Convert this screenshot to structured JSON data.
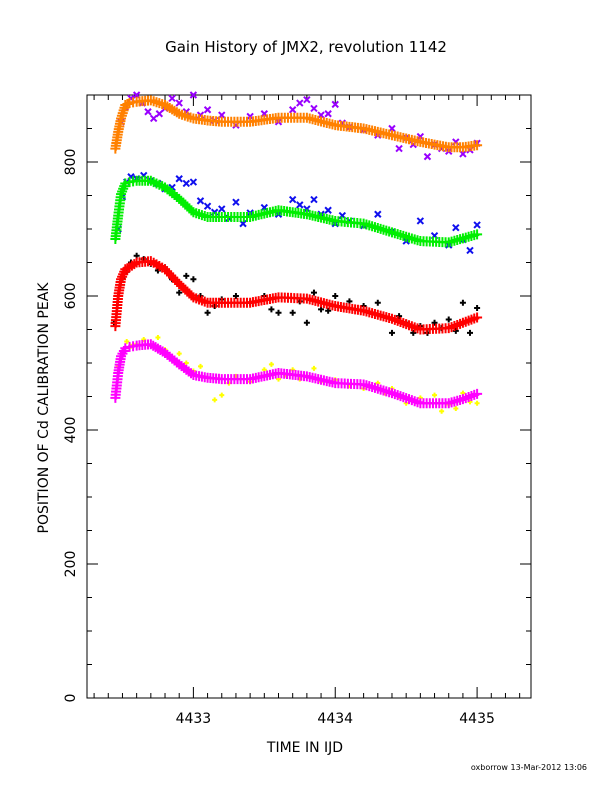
{
  "chart_data": {
    "type": "scatter",
    "title": "Gain History of JMX2, revolution 1142",
    "xlabel": "TIME IN IJD",
    "ylabel": "POSITION OF Cd CALIBRATION PEAK",
    "xlim": [
      4432.25,
      4435.38
    ],
    "ylim": [
      0,
      900
    ],
    "x_ticks": [
      4433,
      4434,
      4435
    ],
    "x_tick_labels": [
      "4433",
      "4434",
      "4435"
    ],
    "y_ticks": [
      0,
      200,
      400,
      600,
      800
    ],
    "y_tick_labels": [
      "0",
      "200",
      "400",
      "600",
      "800"
    ],
    "grid": false,
    "legend": "none",
    "footer": "oxborrow 13-Mar-2012 13:06",
    "series": [
      {
        "role": "raw-scatter",
        "color": "#9900ff",
        "marker": "x",
        "size": 4,
        "x": [
          4432.49,
          4432.52,
          4432.56,
          4432.6,
          4432.64,
          4432.68,
          4432.72,
          4432.76,
          4432.8,
          4432.85,
          4432.9,
          4432.95,
          4433.0,
          4433.05,
          4433.1,
          4433.15,
          4433.2,
          4433.3,
          4433.4,
          4433.5,
          4433.6,
          4433.7,
          4433.75,
          4433.8,
          4433.85,
          4433.9,
          4433.95,
          4434.0,
          4434.05,
          4434.1,
          4434.2,
          4434.3,
          4434.4,
          4434.45,
          4434.5,
          4434.55,
          4434.6,
          4434.65,
          4434.7,
          4434.75,
          4434.8,
          4434.85,
          4434.9,
          4434.95,
          4435.0
        ],
        "y": [
          860,
          882,
          895,
          900,
          888,
          875,
          865,
          872,
          880,
          895,
          888,
          875,
          900,
          870,
          878,
          862,
          870,
          855,
          868,
          872,
          860,
          878,
          888,
          893,
          880,
          870,
          872,
          886,
          858,
          852,
          848,
          840,
          850,
          820,
          836,
          826,
          838,
          808,
          826,
          820,
          816,
          830,
          812,
          818,
          828
        ]
      },
      {
        "role": "raw-scatter",
        "color": "#1010ee",
        "marker": "x",
        "size": 4,
        "x": [
          4432.47,
          4432.5,
          4432.53,
          4432.56,
          4432.6,
          4432.65,
          4432.7,
          4432.75,
          4432.8,
          4432.85,
          4432.9,
          4432.95,
          4433.0,
          4433.05,
          4433.1,
          4433.15,
          4433.2,
          4433.25,
          4433.3,
          4433.35,
          4433.4,
          4433.5,
          4433.6,
          4433.7,
          4433.75,
          4433.8,
          4433.85,
          4433.9,
          4433.95,
          4434.0,
          4434.05,
          4434.1,
          4434.2,
          4434.3,
          4434.4,
          4434.5,
          4434.6,
          4434.7,
          4434.8,
          4434.85,
          4434.9,
          4434.95,
          4435.0
        ],
        "y": [
          700,
          748,
          770,
          778,
          775,
          780,
          772,
          768,
          760,
          762,
          775,
          768,
          770,
          742,
          734,
          725,
          730,
          716,
          740,
          708,
          724,
          732,
          722,
          744,
          736,
          730,
          744,
          722,
          728,
          708,
          720,
          712,
          705,
          722,
          696,
          682,
          712,
          690,
          676,
          702,
          684,
          668,
          706
        ]
      },
      {
        "role": "raw-scatter",
        "color": "#000000",
        "marker": "plus",
        "size": 4,
        "x": [
          4432.44,
          4432.47,
          4432.5,
          4432.53,
          4432.56,
          4432.6,
          4432.65,
          4432.7,
          4432.75,
          4432.8,
          4432.85,
          4432.9,
          4432.95,
          4433.0,
          4433.05,
          4433.1,
          4433.15,
          4433.2,
          4433.3,
          4433.4,
          4433.5,
          4433.55,
          4433.6,
          4433.7,
          4433.75,
          4433.8,
          4433.85,
          4433.9,
          4433.95,
          4434.0,
          4434.1,
          4434.2,
          4434.3,
          4434.4,
          4434.45,
          4434.5,
          4434.55,
          4434.6,
          4434.65,
          4434.7,
          4434.75,
          4434.8,
          4434.85,
          4434.9,
          4434.95,
          4435.0
        ],
        "y": [
          560,
          600,
          626,
          636,
          650,
          660,
          655,
          648,
          638,
          643,
          625,
          605,
          630,
          625,
          600,
          575,
          585,
          595,
          600,
          590,
          600,
          580,
          575,
          575,
          592,
          560,
          605,
          580,
          578,
          600,
          592,
          585,
          590,
          545,
          570,
          560,
          545,
          555,
          545,
          560,
          552,
          565,
          548,
          590,
          545,
          582
        ]
      },
      {
        "role": "raw-scatter",
        "color": "#ffff00",
        "marker": "plus",
        "size": 3,
        "x": [
          4432.47,
          4432.5,
          4432.53,
          4432.56,
          4432.6,
          4432.65,
          4432.7,
          4432.75,
          4432.8,
          4432.85,
          4432.9,
          4432.95,
          4433.0,
          4433.05,
          4433.1,
          4433.15,
          4433.2,
          4433.25,
          4433.3,
          4433.4,
          4433.5,
          4433.55,
          4433.6,
          4433.65,
          4433.7,
          4433.75,
          4433.8,
          4433.85,
          4433.9,
          4434.0,
          4434.1,
          4434.2,
          4434.3,
          4434.35,
          4434.4,
          4434.45,
          4434.5,
          4434.6,
          4434.7,
          4434.75,
          4434.8,
          4434.85,
          4434.9,
          4434.95,
          4435.0
        ],
        "y": [
          495,
          515,
          532,
          525,
          528,
          535,
          526,
          538,
          520,
          506,
          514,
          500,
          488,
          495,
          478,
          445,
          452,
          470,
          480,
          472,
          490,
          498,
          476,
          482,
          490,
          476,
          480,
          492,
          472,
          475,
          466,
          462,
          470,
          455,
          462,
          450,
          440,
          448,
          452,
          428,
          438,
          432,
          455,
          442,
          440
        ]
      },
      {
        "role": "fit-curve",
        "color": "#ff8000",
        "marker": "plus",
        "size": 6,
        "x": [
          4432.45,
          4432.47,
          4432.49,
          4432.52,
          4432.55,
          4432.6,
          4432.7,
          4432.8,
          4432.9,
          4433.0,
          4433.1,
          4433.2,
          4433.4,
          4433.6,
          4433.8,
          4434.0,
          4434.2,
          4434.4,
          4434.6,
          4434.8,
          4434.9,
          4435.0
        ],
        "y": [
          820,
          845,
          865,
          885,
          888,
          890,
          892,
          885,
          872,
          865,
          862,
          860,
          860,
          866,
          866,
          855,
          850,
          840,
          830,
          822,
          822,
          825
        ]
      },
      {
        "role": "fit-curve",
        "color": "#00ee00",
        "marker": "plus",
        "size": 6,
        "x": [
          4432.45,
          4432.47,
          4432.49,
          4432.52,
          4432.55,
          4432.6,
          4432.7,
          4432.8,
          4432.9,
          4433.0,
          4433.1,
          4433.2,
          4433.4,
          4433.6,
          4433.8,
          4434.0,
          4434.2,
          4434.4,
          4434.6,
          4434.8,
          4434.9,
          4435.0
        ],
        "y": [
          685,
          720,
          752,
          768,
          770,
          772,
          772,
          762,
          745,
          725,
          718,
          718,
          718,
          728,
          722,
          712,
          708,
          695,
          682,
          680,
          686,
          692
        ]
      },
      {
        "role": "fit-curve",
        "color": "#ff0000",
        "marker": "plus",
        "size": 6,
        "x": [
          4432.45,
          4432.47,
          4432.49,
          4432.52,
          4432.55,
          4432.6,
          4432.7,
          4432.8,
          4432.9,
          4433.0,
          4433.1,
          4433.2,
          4433.4,
          4433.6,
          4433.8,
          4434.0,
          4434.2,
          4434.4,
          4434.6,
          4434.8,
          4434.9,
          4435.0
        ],
        "y": [
          555,
          600,
          625,
          640,
          643,
          650,
          652,
          640,
          618,
          598,
          590,
          590,
          590,
          598,
          596,
          585,
          578,
          566,
          550,
          552,
          560,
          568
        ]
      },
      {
        "role": "fit-curve",
        "color": "#ff00ff",
        "marker": "plus",
        "size": 6,
        "x": [
          4432.45,
          4432.47,
          4432.49,
          4432.52,
          4432.55,
          4432.6,
          4432.7,
          4432.8,
          4432.9,
          4433.0,
          4433.1,
          4433.2,
          4433.4,
          4433.6,
          4433.8,
          4434.0,
          4434.2,
          4434.4,
          4434.6,
          4434.8,
          4434.9,
          4435.0
        ],
        "y": [
          448,
          485,
          510,
          522,
          524,
          526,
          528,
          515,
          498,
          482,
          478,
          476,
          476,
          485,
          480,
          470,
          468,
          455,
          440,
          440,
          446,
          454
        ]
      }
    ]
  }
}
